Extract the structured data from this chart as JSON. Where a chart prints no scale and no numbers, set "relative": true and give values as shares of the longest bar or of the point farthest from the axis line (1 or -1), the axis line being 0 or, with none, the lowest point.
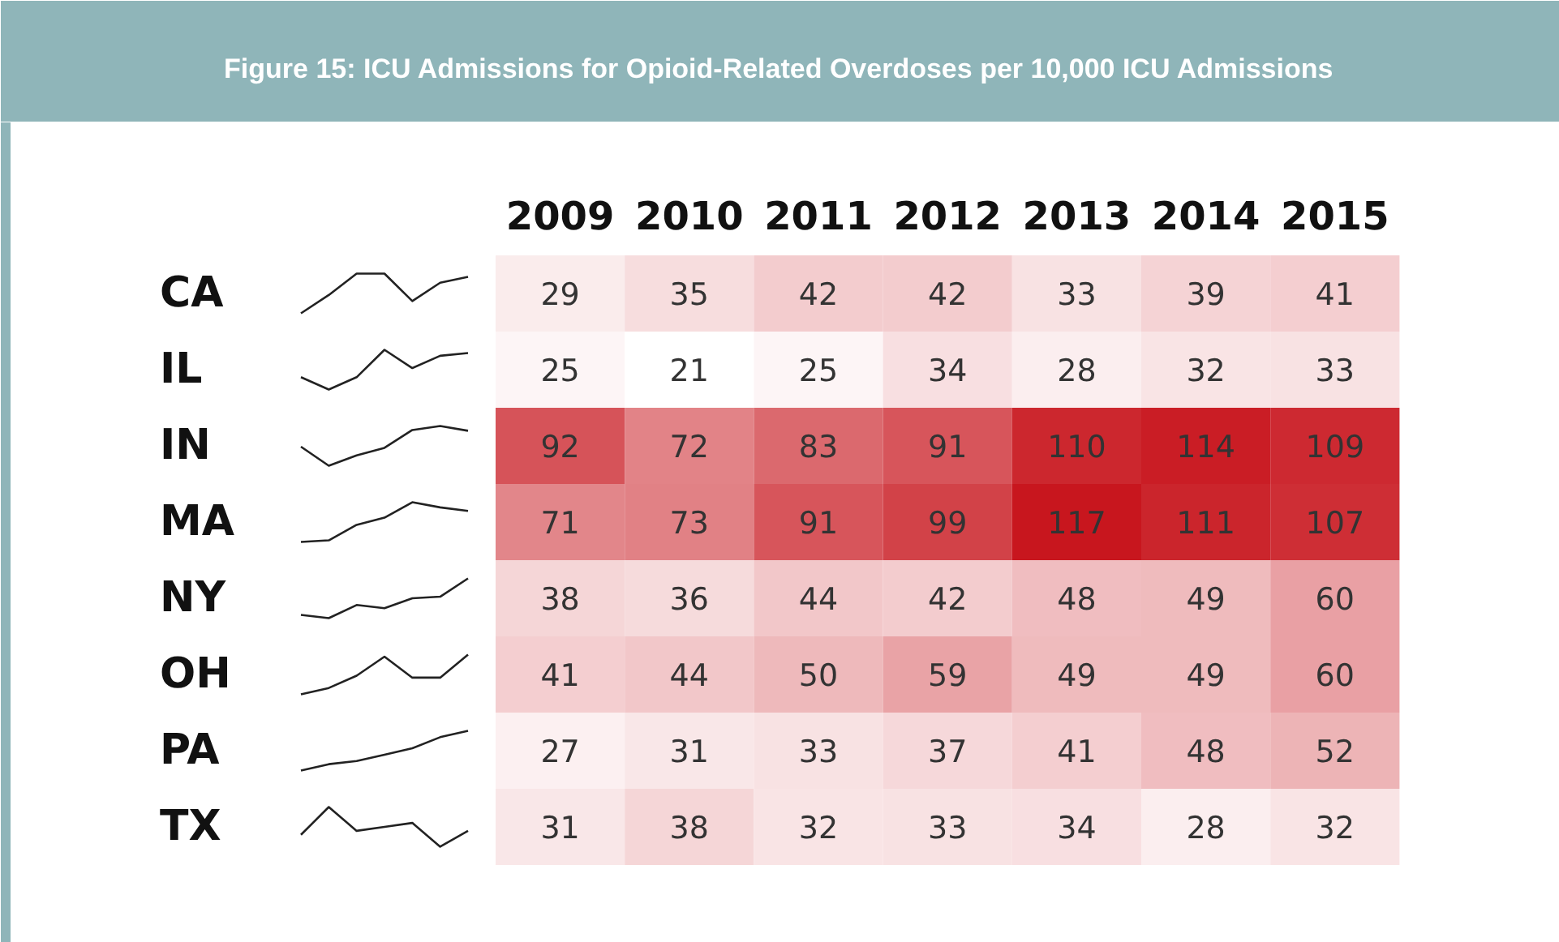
{
  "chart_data": [
    {
      "type": "heatmap",
      "title": "Figure 15: ICU Admissions for Opioid-Related Overdoses per 10,000 ICU Admissions",
      "categories": [
        "2009",
        "2010",
        "2011",
        "2012",
        "2013",
        "2014",
        "2015"
      ],
      "y_categories": [
        "CA",
        "IL",
        "IN",
        "MA",
        "NY",
        "OH",
        "PA",
        "TX"
      ],
      "cells": [
        [
          29,
          35,
          42,
          42,
          33,
          39,
          41
        ],
        [
          25,
          21,
          25,
          34,
          28,
          32,
          33
        ],
        [
          92,
          72,
          83,
          91,
          110,
          114,
          109
        ],
        [
          71,
          73,
          91,
          99,
          117,
          111,
          107
        ],
        [
          38,
          36,
          44,
          42,
          48,
          49,
          60
        ],
        [
          41,
          44,
          50,
          59,
          49,
          49,
          60
        ],
        [
          27,
          31,
          33,
          37,
          41,
          48,
          52
        ],
        [
          31,
          38,
          32,
          33,
          34,
          28,
          32
        ]
      ],
      "data_labels": true
    },
    {
      "type": "line",
      "relative": true,
      "categories": [
        null,
        null,
        null,
        null,
        null,
        null,
        null
      ],
      "series": [
        {
          "color": "#222222",
          "values": [
            0,
            0.46,
            1,
            1,
            0.31,
            0.77,
            0.92
          ]
        }
      ]
    },
    {
      "type": "line",
      "relative": true,
      "categories": [
        null,
        null,
        null,
        null,
        null,
        null,
        null
      ],
      "series": [
        {
          "color": "#222222",
          "values": [
            0.31,
            0,
            0.31,
            1,
            0.54,
            0.85,
            0.92
          ]
        }
      ]
    },
    {
      "type": "line",
      "relative": true,
      "categories": [
        null,
        null,
        null,
        null,
        null,
        null,
        null
      ],
      "series": [
        {
          "color": "#222222",
          "values": [
            0.48,
            0,
            0.26,
            0.45,
            0.9,
            1,
            0.88
          ]
        }
      ]
    },
    {
      "type": "line",
      "relative": true,
      "categories": [
        null,
        null,
        null,
        null,
        null,
        null,
        null
      ],
      "series": [
        {
          "color": "#222222",
          "values": [
            0,
            0.04,
            0.43,
            0.61,
            1,
            0.87,
            0.78
          ]
        }
      ]
    },
    {
      "type": "line",
      "relative": true,
      "categories": [
        null,
        null,
        null,
        null,
        null,
        null,
        null
      ],
      "series": [
        {
          "color": "#222222",
          "values": [
            0.08,
            0,
            0.33,
            0.25,
            0.5,
            0.54,
            1
          ]
        }
      ]
    },
    {
      "type": "line",
      "relative": true,
      "categories": [
        null,
        null,
        null,
        null,
        null,
        null,
        null
      ],
      "series": [
        {
          "color": "#222222",
          "values": [
            0,
            0.16,
            0.47,
            0.95,
            0.42,
            0.42,
            1
          ]
        }
      ]
    },
    {
      "type": "line",
      "relative": true,
      "categories": [
        null,
        null,
        null,
        null,
        null,
        null,
        null
      ],
      "series": [
        {
          "color": "#222222",
          "values": [
            0,
            0.16,
            0.24,
            0.4,
            0.56,
            0.84,
            1
          ]
        }
      ]
    },
    {
      "type": "line",
      "relative": true,
      "categories": [
        null,
        null,
        null,
        null,
        null,
        null,
        null
      ],
      "series": [
        {
          "color": "#222222",
          "values": [
            0.3,
            1,
            0.4,
            0.5,
            0.6,
            0,
            0.4
          ]
        }
      ]
    }
  ]
}
